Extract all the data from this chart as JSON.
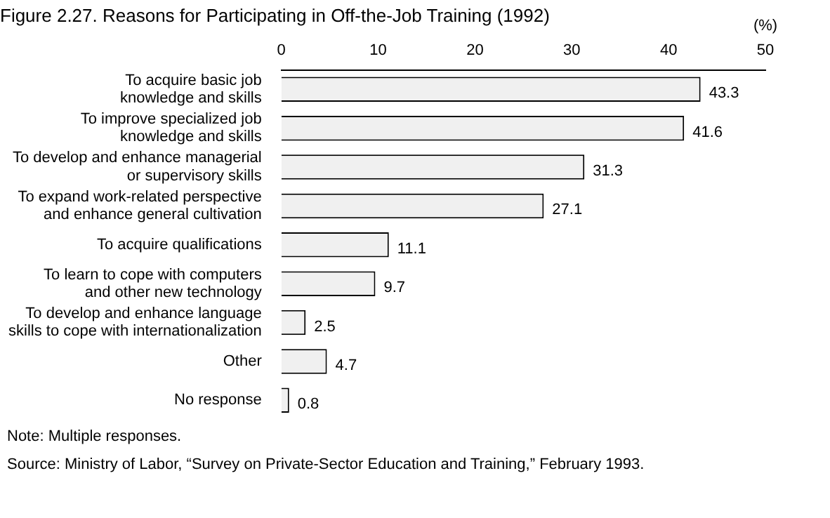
{
  "chart_data": {
    "type": "bar",
    "orientation": "horizontal",
    "title": "Figure 2.27. Reasons for Participating in Off-the-Job Training (1992)",
    "xlabel": "(%)",
    "categories": [
      "To acquire basic job\nknowledge and skills",
      "To improve specialized job\nknowledge and skills",
      "To develop and enhance managerial\nor supervisory skills",
      "To expand work-related perspective\nand enhance general cultivation",
      "To acquire qualifications",
      "To learn to cope with computers\nand other new technology",
      "To develop and enhance language\nskills to cope with internationalization",
      "Other",
      "No response"
    ],
    "values": [
      43.3,
      41.6,
      31.3,
      27.1,
      11.1,
      9.7,
      2.5,
      4.7,
      0.8
    ],
    "color": "#f0f0f0",
    "xlim": [
      0,
      50
    ],
    "xticks": [
      0,
      10,
      20,
      30,
      40,
      50
    ],
    "grid": false,
    "legend": false,
    "data_labels": true,
    "annotations": [
      "Note: Multiple responses.",
      "Source: Ministry of Labor, “Survey on Private-Sector Education and Training,” February 1993."
    ]
  }
}
